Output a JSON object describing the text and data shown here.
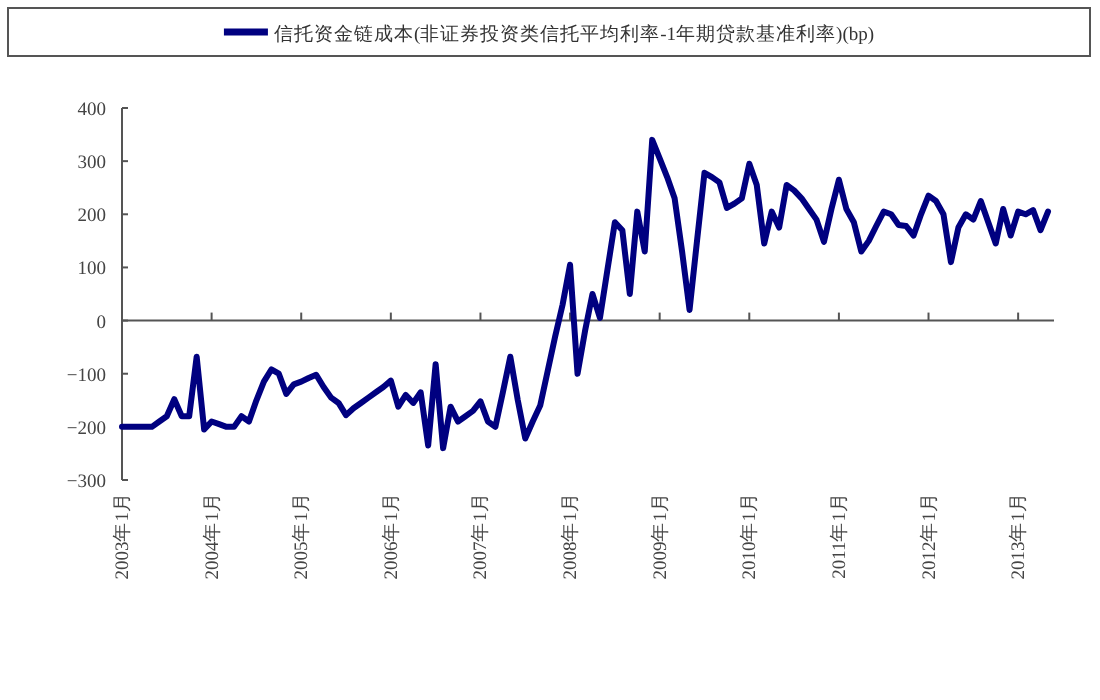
{
  "chart_data": {
    "type": "line",
    "legend": "top",
    "marker": "none",
    "line_style": "solid",
    "ylim": [
      -300,
      400
    ],
    "yticks": [
      -300,
      -200,
      -100,
      0,
      100,
      200,
      300,
      400
    ],
    "categories": [
      "2003年1月",
      null,
      null,
      null,
      null,
      null,
      null,
      null,
      null,
      null,
      null,
      null,
      "2004年1月",
      null,
      null,
      null,
      null,
      null,
      null,
      null,
      null,
      null,
      null,
      null,
      "2005年1月",
      null,
      null,
      null,
      null,
      null,
      null,
      null,
      null,
      null,
      null,
      null,
      "2006年1月",
      null,
      null,
      null,
      null,
      null,
      null,
      null,
      null,
      null,
      null,
      null,
      "2007年1月",
      null,
      null,
      null,
      null,
      null,
      null,
      null,
      null,
      null,
      null,
      null,
      "2008年1月",
      null,
      null,
      null,
      null,
      null,
      null,
      null,
      null,
      null,
      null,
      null,
      "2009年1月",
      null,
      null,
      null,
      null,
      null,
      null,
      null,
      null,
      null,
      null,
      null,
      "2010年1月",
      null,
      null,
      null,
      null,
      null,
      null,
      null,
      null,
      null,
      null,
      null,
      "2011年1月",
      null,
      null,
      null,
      null,
      null,
      null,
      null,
      null,
      null,
      null,
      null,
      "2012年1月",
      null,
      null,
      null,
      null,
      null,
      null,
      null,
      null,
      null,
      null,
      null,
      "2013年1月",
      null,
      null,
      null,
      null
    ],
    "series": [
      {
        "name": "信托资金链成本(非证券投资类信托平均利率-1年期贷款基准利率)(bp)",
        "color": "#000080",
        "values": [
          -200,
          -200,
          -200,
          -200,
          -200,
          -190,
          -180,
          -148,
          -180,
          -180,
          -68,
          -205,
          -190,
          -195,
          -200,
          -200,
          -180,
          -190,
          -150,
          -115,
          -92,
          -100,
          -138,
          -120,
          -115,
          -108,
          -102,
          -125,
          -145,
          -155,
          -178,
          -165,
          -155,
          -145,
          -135,
          -125,
          -113,
          -162,
          -140,
          -155,
          -135,
          -235,
          -82,
          -240,
          -162,
          -190,
          -180,
          -170,
          -152,
          -190,
          -200,
          -135,
          -68,
          -150,
          -222,
          -190,
          -160,
          -95,
          -30,
          30,
          105,
          -100,
          -20,
          50,
          5,
          95,
          185,
          170,
          50,
          205,
          130,
          340,
          305,
          270,
          230,
          130,
          20,
          150,
          278,
          270,
          260,
          212,
          220,
          230,
          295,
          255,
          145,
          205,
          175,
          255,
          245,
          230,
          210,
          190,
          148,
          210,
          265,
          210,
          185,
          130,
          150,
          178,
          205,
          200,
          180,
          178,
          160,
          200,
          235,
          225,
          200,
          110,
          175,
          200,
          190,
          225,
          185,
          145,
          210,
          160,
          205,
          200,
          208,
          170,
          205
        ]
      }
    ]
  }
}
